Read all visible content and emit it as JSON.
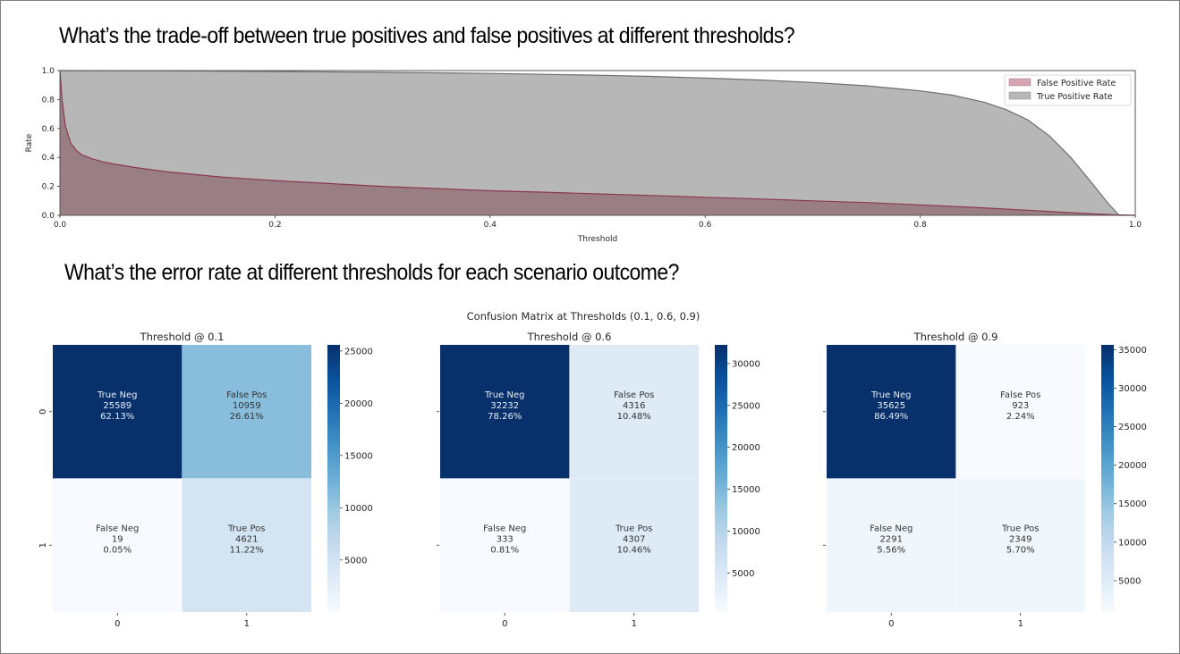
{
  "page": {
    "question_1": "What’s the trade-off between true positives and false positives at different thresholds?",
    "question_2": "What’s the error rate at different thresholds for each scenario outcome?"
  },
  "chart_data": [
    {
      "type": "area",
      "title": "",
      "xlabel": "Threshold",
      "ylabel": "Rate",
      "xlim": [
        0.0,
        1.0
      ],
      "ylim": [
        0.0,
        1.0
      ],
      "xticks": [
        "0.0",
        "0.2",
        "0.4",
        "0.6",
        "0.8",
        "1.0"
      ],
      "yticks": [
        "0.0",
        "0.2",
        "0.4",
        "0.6",
        "0.8",
        "1.0"
      ],
      "legend_position": "top-right",
      "colors": {
        "tpr": "#b7b7b7",
        "tpr_line": "#6e6e6e",
        "fpr": "#997f84",
        "fpr_line": "#8b3a4e",
        "legend_fpr": "#d4a5b3",
        "legend_tpr": "#b7b7b7"
      },
      "series": [
        {
          "name": "False Positive Rate",
          "x": [
            0.0,
            0.002,
            0.005,
            0.01,
            0.015,
            0.02,
            0.03,
            0.04,
            0.05,
            0.07,
            0.1,
            0.15,
            0.2,
            0.25,
            0.3,
            0.35,
            0.4,
            0.45,
            0.5,
            0.55,
            0.6,
            0.65,
            0.7,
            0.75,
            0.8,
            0.85,
            0.9,
            0.93,
            0.96,
            0.98,
            1.0
          ],
          "y": [
            1.0,
            0.8,
            0.62,
            0.5,
            0.45,
            0.42,
            0.39,
            0.37,
            0.355,
            0.33,
            0.3,
            0.265,
            0.24,
            0.22,
            0.2,
            0.185,
            0.17,
            0.16,
            0.148,
            0.137,
            0.125,
            0.113,
            0.1,
            0.088,
            0.072,
            0.055,
            0.035,
            0.022,
            0.01,
            0.004,
            0.0
          ]
        },
        {
          "name": "True Positive Rate",
          "x": [
            0.0,
            0.1,
            0.2,
            0.3,
            0.4,
            0.5,
            0.55,
            0.6,
            0.65,
            0.7,
            0.75,
            0.8,
            0.83,
            0.86,
            0.88,
            0.9,
            0.92,
            0.94,
            0.96,
            0.975,
            0.985,
            1.0
          ],
          "y": [
            1.0,
            0.998,
            0.994,
            0.988,
            0.98,
            0.968,
            0.96,
            0.948,
            0.935,
            0.918,
            0.895,
            0.86,
            0.83,
            0.78,
            0.73,
            0.66,
            0.55,
            0.4,
            0.22,
            0.08,
            0.0,
            0.0
          ]
        }
      ]
    },
    {
      "type": "heatmap",
      "suptitle": "Confusion Matrix at Thresholds (0.1, 0.6, 0.9)",
      "matrices": [
        {
          "title": "Threshold @ 0.1",
          "row_labels": [
            "0",
            "1"
          ],
          "col_labels": [
            "0",
            "1"
          ],
          "cells": [
            [
              {
                "label": "True Neg",
                "count": 25589,
                "count_text": "25589",
                "pct": "62.13%"
              },
              {
                "label": "False Pos",
                "count": 10959,
                "count_text": "10959",
                "pct": "26.61%"
              }
            ],
            [
              {
                "label": "False Neg",
                "count": 19,
                "count_text": "19",
                "pct": "0.05%"
              },
              {
                "label": "True Pos",
                "count": 4621,
                "count_text": "4621",
                "pct": "11.22%"
              }
            ]
          ],
          "colorbar_ticks": [
            "5000",
            "10000",
            "15000",
            "20000",
            "25000"
          ],
          "colorbar_values": [
            5000,
            10000,
            15000,
            20000,
            25000
          ],
          "colorbar_range": [
            19,
            25589
          ],
          "show_row_labels": true
        },
        {
          "title": "Threshold @ 0.6",
          "row_labels": [
            "",
            ""
          ],
          "col_labels": [
            "0",
            "1"
          ],
          "cells": [
            [
              {
                "label": "True Neg",
                "count": 32232,
                "count_text": "32232",
                "pct": "78.26%"
              },
              {
                "label": "False Pos",
                "count": 4316,
                "count_text": "4316",
                "pct": "10.48%"
              }
            ],
            [
              {
                "label": "False Neg",
                "count": 333,
                "count_text": "333",
                "pct": "0.81%"
              },
              {
                "label": "True Pos",
                "count": 4307,
                "count_text": "4307",
                "pct": "10.46%"
              }
            ]
          ],
          "colorbar_ticks": [
            "5000",
            "10000",
            "15000",
            "20000",
            "25000",
            "30000"
          ],
          "colorbar_values": [
            5000,
            10000,
            15000,
            20000,
            25000,
            30000
          ],
          "colorbar_range": [
            333,
            32232
          ],
          "show_row_labels": false
        },
        {
          "title": "Threshold @ 0.9",
          "row_labels": [
            "",
            ""
          ],
          "col_labels": [
            "0",
            "1"
          ],
          "cells": [
            [
              {
                "label": "True Neg",
                "count": 35625,
                "count_text": "35625",
                "pct": "86.49%"
              },
              {
                "label": "False Pos",
                "count": 923,
                "count_text": "923",
                "pct": "2.24%"
              }
            ],
            [
              {
                "label": "False Neg",
                "count": 2291,
                "count_text": "2291",
                "pct": "5.56%"
              },
              {
                "label": "True Pos",
                "count": 2349,
                "count_text": "2349",
                "pct": "5.70%"
              }
            ]
          ],
          "colorbar_ticks": [
            "5000",
            "10000",
            "15000",
            "20000",
            "25000",
            "30000",
            "35000"
          ],
          "colorbar_values": [
            5000,
            10000,
            15000,
            20000,
            25000,
            30000,
            35000
          ],
          "colorbar_range": [
            923,
            35625
          ],
          "show_row_labels": false
        }
      ]
    }
  ]
}
